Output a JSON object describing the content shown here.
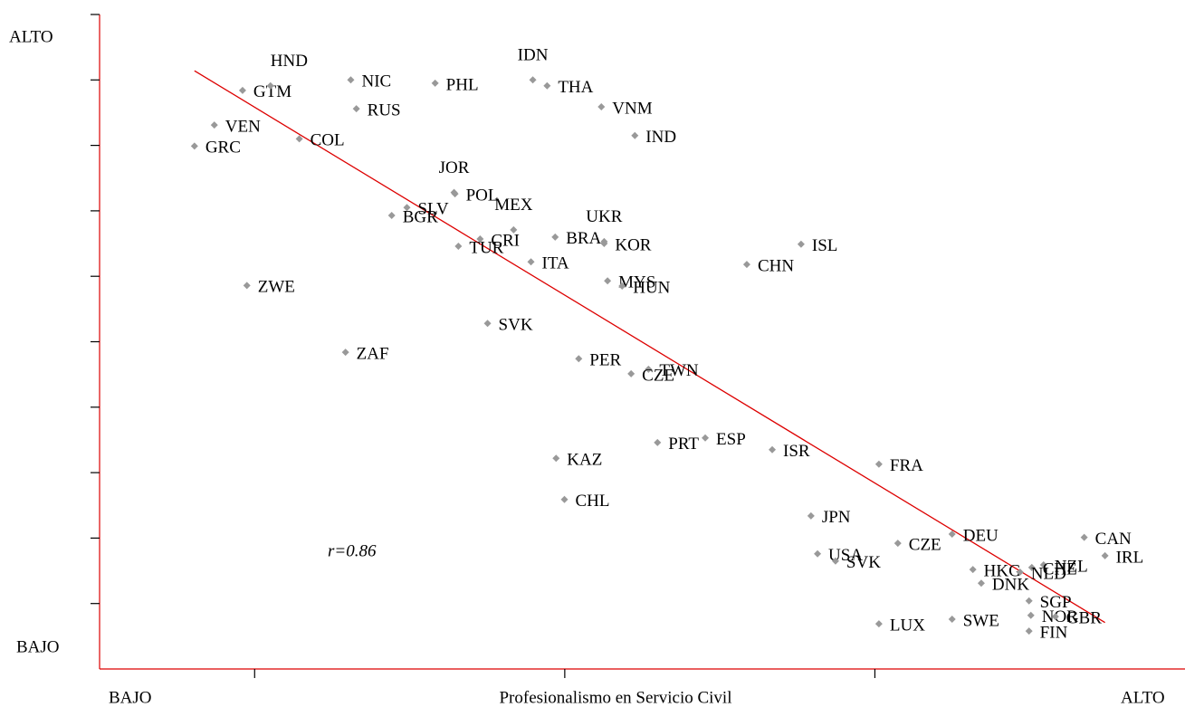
{
  "chart_data": {
    "type": "scatter",
    "x_label": "Profesionalismo en Servicio Civil",
    "x_low_label": "BAJO",
    "x_high_label": "ALTO",
    "y_low_label": "BAJO",
    "y_high_label": "ALTO",
    "annotation": "r=0.86",
    "xlim": [
      0,
      3.5
    ],
    "ylim": [
      0,
      10
    ],
    "xticks": [
      0.5,
      1.5,
      2.5
    ],
    "yticks": [
      1,
      2,
      3,
      4,
      5,
      6,
      7,
      8,
      9,
      10
    ],
    "color": "#999999",
    "axis_color": "#dd0000",
    "trendline": {
      "x": [
        0.306,
        3.242
      ],
      "y": [
        9.14,
        0.71
      ],
      "color": "#dd0000"
    },
    "labels": [
      "GRC",
      "VEN",
      "GTM",
      "HND",
      "NIC",
      "RUS",
      "COL",
      "PHL",
      "IDN",
      "THA",
      "VNM",
      "IND",
      "JOR",
      "POL",
      "SLV",
      "BGR",
      "MEX",
      "UKR",
      "BRA",
      "KOR",
      "CRI",
      "TUR",
      "ITA",
      "ISL",
      "CHN",
      "MYS",
      "HUN",
      "ZWE",
      "SVK",
      "ZAF",
      "PER",
      "TWN",
      "CZE",
      "PRT",
      "ESP",
      "ISR",
      "KAZ",
      "FRA",
      "CHL",
      "JPN",
      "DEU",
      "CAN",
      "IRL",
      "CZE",
      "USA",
      "SVK",
      "NZL",
      "HKG",
      "DNK",
      "CHE",
      "NLD",
      "SGP",
      "LUX",
      "SWE",
      "NOR",
      "GBR",
      "FIN"
    ],
    "x": [
      0.306,
      0.37,
      0.461,
      0.551,
      0.81,
      0.828,
      0.644,
      1.082,
      1.397,
      1.443,
      1.618,
      1.726,
      1.143,
      1.146,
      0.991,
      0.942,
      1.335,
      1.627,
      1.469,
      1.627,
      1.227,
      1.157,
      1.391,
      2.262,
      2.087,
      1.638,
      1.685,
      0.475,
      1.251,
      0.793,
      1.545,
      1.77,
      1.714,
      1.799,
      1.953,
      2.169,
      1.472,
      2.513,
      1.499,
      2.294,
      2.749,
      3.175,
      3.242,
      2.574,
      2.315,
      2.373,
      3.044,
      2.816,
      2.843,
      3.006,
      2.968,
      2.997,
      2.513,
      2.749,
      3.003,
      3.082,
      2.997
    ],
    "y": [
      7.99,
      8.31,
      8.84,
      8.91,
      9.0,
      8.56,
      8.1,
      8.95,
      9.0,
      8.91,
      8.59,
      8.15,
      7.28,
      7.26,
      7.05,
      6.93,
      6.71,
      6.53,
      6.6,
      6.5,
      6.57,
      6.46,
      6.22,
      6.49,
      6.18,
      5.93,
      5.85,
      5.86,
      5.28,
      4.84,
      4.74,
      4.58,
      4.51,
      3.46,
      3.53,
      3.35,
      3.22,
      3.13,
      2.59,
      2.34,
      2.06,
      2.01,
      1.73,
      1.92,
      1.76,
      1.65,
      1.59,
      1.52,
      1.31,
      1.55,
      1.48,
      1.04,
      0.69,
      0.76,
      0.82,
      0.8,
      0.58
    ]
  }
}
